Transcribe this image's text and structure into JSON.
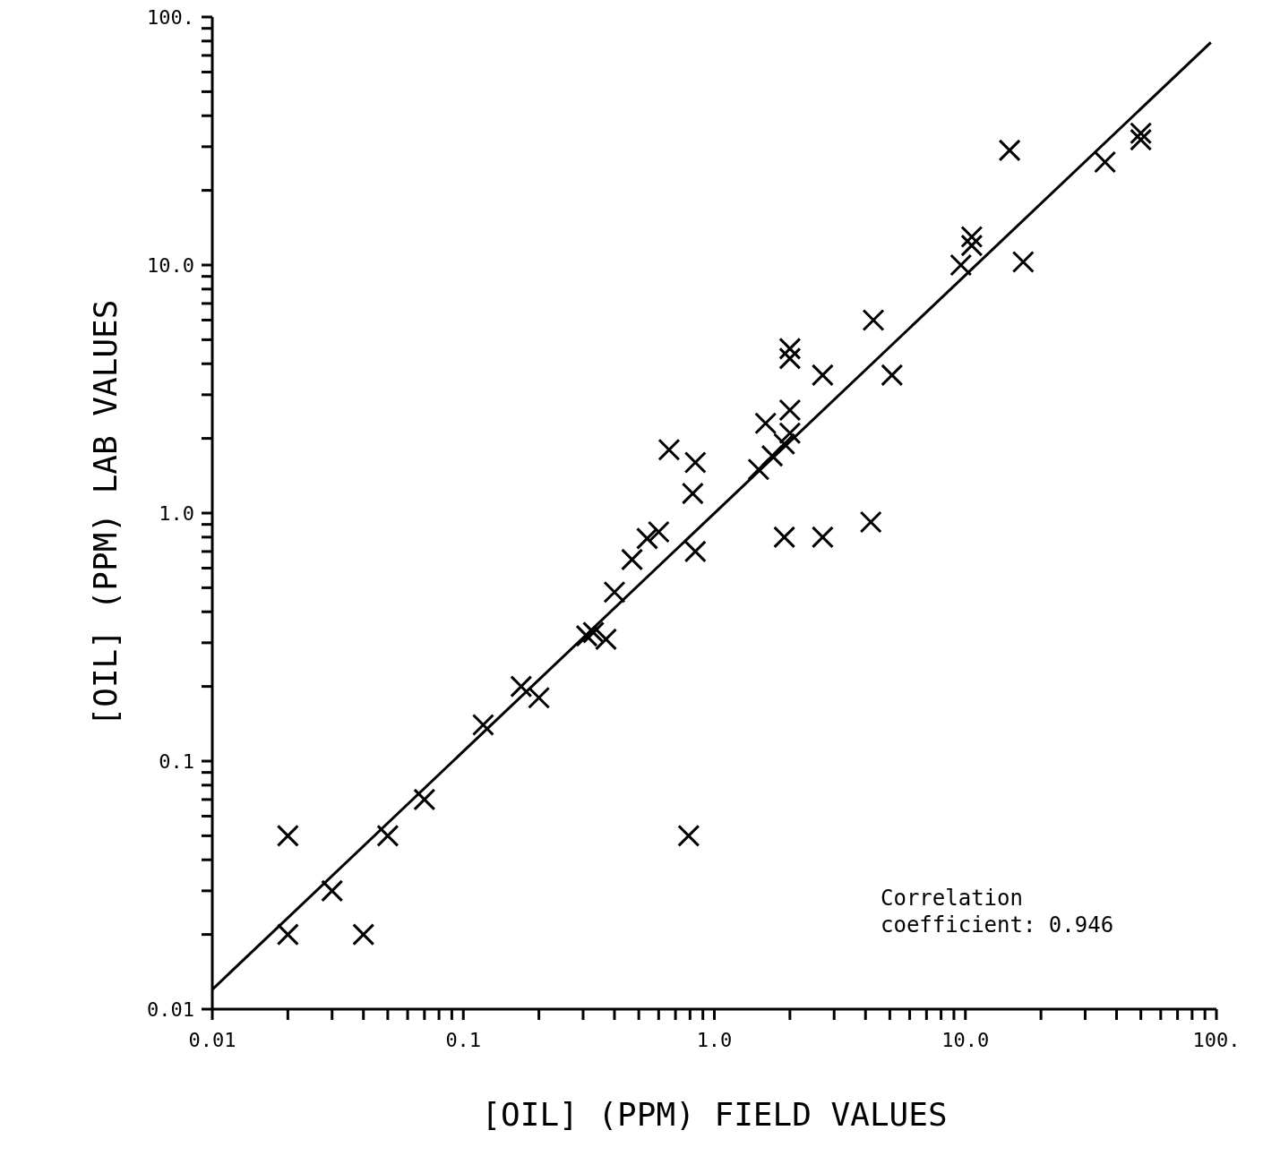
{
  "chart_data": {
    "type": "scatter",
    "xlabel": "[OIL] (PPM) FIELD VALUES",
    "ylabel": "[OIL] (PPM) LAB VALUES",
    "log": "xy",
    "color": "#000000",
    "xlim": [
      0.01,
      100
    ],
    "ylim": [
      0.01,
      100
    ],
    "xticks": [
      {
        "value": 0.01,
        "label": "0.01"
      },
      {
        "value": 0.02,
        "label": null
      },
      {
        "value": 0.03,
        "label": null
      },
      {
        "value": 0.04,
        "label": null
      },
      {
        "value": 0.05,
        "label": null
      },
      {
        "value": 0.06,
        "label": null
      },
      {
        "value": 0.07,
        "label": null
      },
      {
        "value": 0.08,
        "label": null
      },
      {
        "value": 0.09,
        "label": null
      },
      {
        "value": 0.1,
        "label": "0.1"
      },
      {
        "value": 0.2,
        "label": null
      },
      {
        "value": 0.3,
        "label": null
      },
      {
        "value": 0.4,
        "label": null
      },
      {
        "value": 0.5,
        "label": null
      },
      {
        "value": 0.6,
        "label": null
      },
      {
        "value": 0.7,
        "label": null
      },
      {
        "value": 0.8,
        "label": null
      },
      {
        "value": 0.9,
        "label": null
      },
      {
        "value": 1,
        "label": "1.0"
      },
      {
        "value": 2,
        "label": null
      },
      {
        "value": 3,
        "label": null
      },
      {
        "value": 4,
        "label": null
      },
      {
        "value": 5,
        "label": null
      },
      {
        "value": 6,
        "label": null
      },
      {
        "value": 7,
        "label": null
      },
      {
        "value": 8,
        "label": null
      },
      {
        "value": 9,
        "label": null
      },
      {
        "value": 10,
        "label": "10.0"
      },
      {
        "value": 20,
        "label": null
      },
      {
        "value": 30,
        "label": null
      },
      {
        "value": 40,
        "label": null
      },
      {
        "value": 50,
        "label": null
      },
      {
        "value": 60,
        "label": null
      },
      {
        "value": 70,
        "label": null
      },
      {
        "value": 80,
        "label": null
      },
      {
        "value": 90,
        "label": null
      },
      {
        "value": 100,
        "label": "100."
      }
    ],
    "yticks": [
      {
        "value": 0.01,
        "label": "0.01"
      },
      {
        "value": 0.02,
        "label": null
      },
      {
        "value": 0.03,
        "label": null
      },
      {
        "value": 0.04,
        "label": null
      },
      {
        "value": 0.05,
        "label": null
      },
      {
        "value": 0.06,
        "label": null
      },
      {
        "value": 0.07,
        "label": null
      },
      {
        "value": 0.08,
        "label": null
      },
      {
        "value": 0.09,
        "label": null
      },
      {
        "value": 0.1,
        "label": "0.1"
      },
      {
        "value": 0.2,
        "label": null
      },
      {
        "value": 0.3,
        "label": null
      },
      {
        "value": 0.4,
        "label": null
      },
      {
        "value": 0.5,
        "label": null
      },
      {
        "value": 0.6,
        "label": null
      },
      {
        "value": 0.7,
        "label": null
      },
      {
        "value": 0.8,
        "label": null
      },
      {
        "value": 0.9,
        "label": null
      },
      {
        "value": 1,
        "label": "1.0"
      },
      {
        "value": 2,
        "label": null
      },
      {
        "value": 3,
        "label": null
      },
      {
        "value": 4,
        "label": null
      },
      {
        "value": 5,
        "label": null
      },
      {
        "value": 6,
        "label": null
      },
      {
        "value": 7,
        "label": null
      },
      {
        "value": 8,
        "label": null
      },
      {
        "value": 9,
        "label": null
      },
      {
        "value": 10,
        "label": "10.0"
      },
      {
        "value": 20,
        "label": null
      },
      {
        "value": 30,
        "label": null
      },
      {
        "value": 40,
        "label": null
      },
      {
        "value": 50,
        "label": null
      },
      {
        "value": 60,
        "label": null
      },
      {
        "value": 70,
        "label": null
      },
      {
        "value": 80,
        "label": null
      },
      {
        "value": 90,
        "label": null
      },
      {
        "value": 100,
        "label": "100."
      }
    ],
    "series": [
      {
        "marker": "cross",
        "x": [
          0.02,
          0.02,
          0.03,
          0.04,
          0.05,
          0.07,
          0.12,
          0.17,
          0.2,
          0.31,
          0.33,
          0.37,
          0.4,
          0.47,
          0.54,
          0.6,
          0.66,
          0.82,
          0.84,
          0.84,
          0.79,
          1.6,
          2.0,
          2.0,
          2.0,
          2.0,
          1.9,
          1.7,
          1.5,
          1.9,
          2.7,
          4.2,
          2.7,
          4.3,
          5.1,
          9.6,
          10.6,
          10.6,
          17,
          15,
          36,
          50,
          50
        ],
        "values": [
          0.05,
          0.02,
          0.03,
          0.02,
          0.05,
          0.07,
          0.14,
          0.2,
          0.18,
          0.32,
          0.33,
          0.31,
          0.48,
          0.65,
          0.79,
          0.84,
          1.8,
          1.2,
          1.6,
          0.7,
          0.05,
          2.3,
          4.6,
          4.2,
          2.6,
          2.1,
          1.9,
          1.7,
          1.5,
          0.8,
          0.8,
          0.92,
          3.6,
          6.0,
          3.6,
          10,
          13,
          12,
          10.3,
          29,
          26,
          34,
          32
        ]
      },
      {
        "type": "line",
        "color": "#000000",
        "x": [
          0.01,
          95
        ],
        "values": [
          0.012,
          79
        ]
      }
    ],
    "annotations": [
      "Correlation coefficient: 0.946"
    ]
  }
}
